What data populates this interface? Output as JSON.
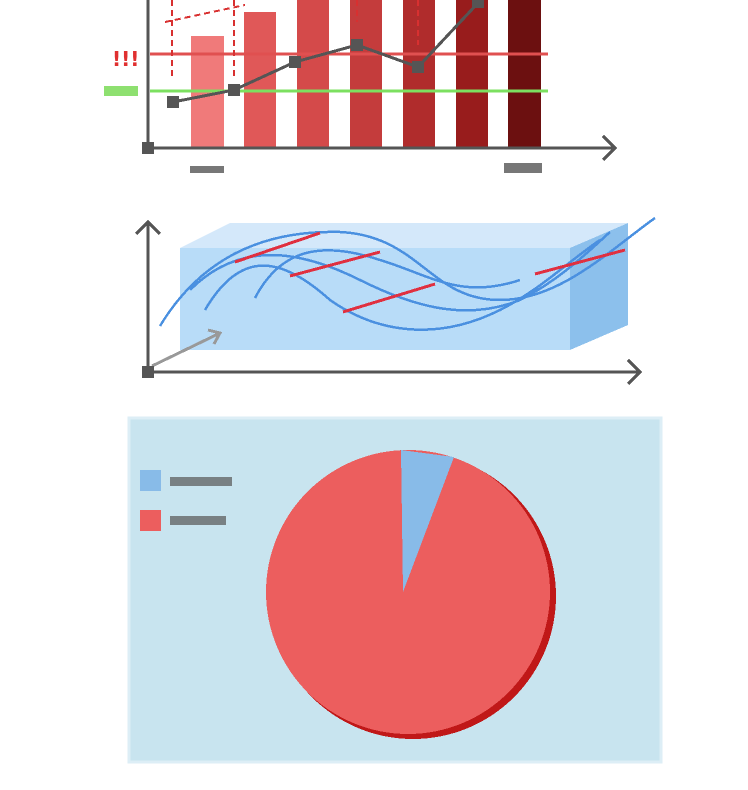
{
  "labels": {
    "warning": "!!!"
  }
}
